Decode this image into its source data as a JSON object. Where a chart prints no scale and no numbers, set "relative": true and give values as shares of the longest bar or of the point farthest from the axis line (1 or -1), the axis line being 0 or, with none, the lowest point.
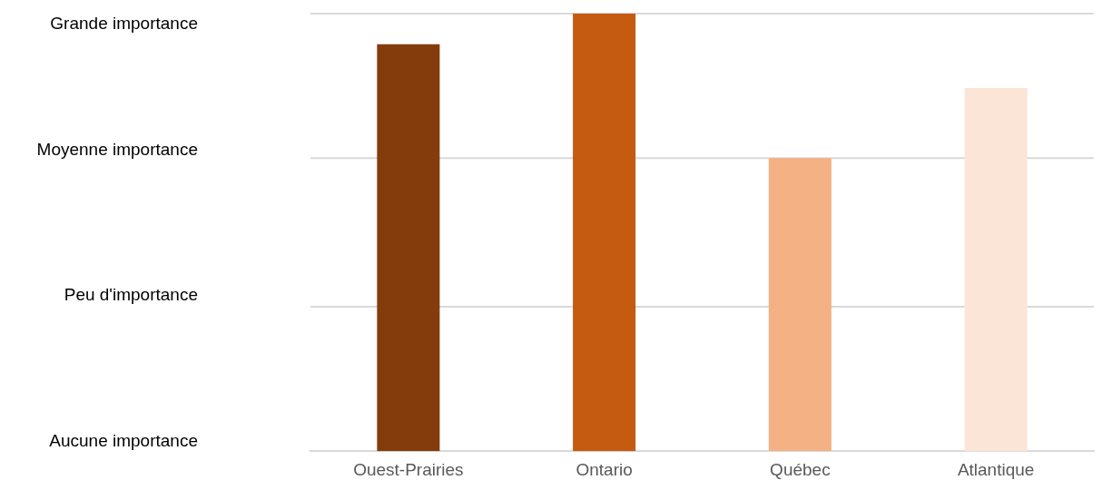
{
  "chart_data": {
    "type": "bar",
    "categories": [
      "Ouest-Prairies",
      "Ontario",
      "Québec",
      "Atlantique"
    ],
    "values": [
      0.93,
      1,
      0.67,
      0.83
    ],
    "colors": [
      "#843c0c",
      "#c55a11",
      "#f4b183",
      "#fbe5d6"
    ],
    "relative": true,
    "annotations": [
      "Grande importance",
      "Moyenne importance",
      "Peu d'importance",
      "Aucune importance"
    ],
    "ref_lines": [
      {
        "axis": "y",
        "value": 0.33,
        "color": "#d9d9d9"
      },
      {
        "axis": "y",
        "value": 0.67,
        "color": "#d9d9d9"
      },
      {
        "axis": "y",
        "value": 1,
        "color": "#d9d9d9"
      }
    ],
    "legend": false
  }
}
